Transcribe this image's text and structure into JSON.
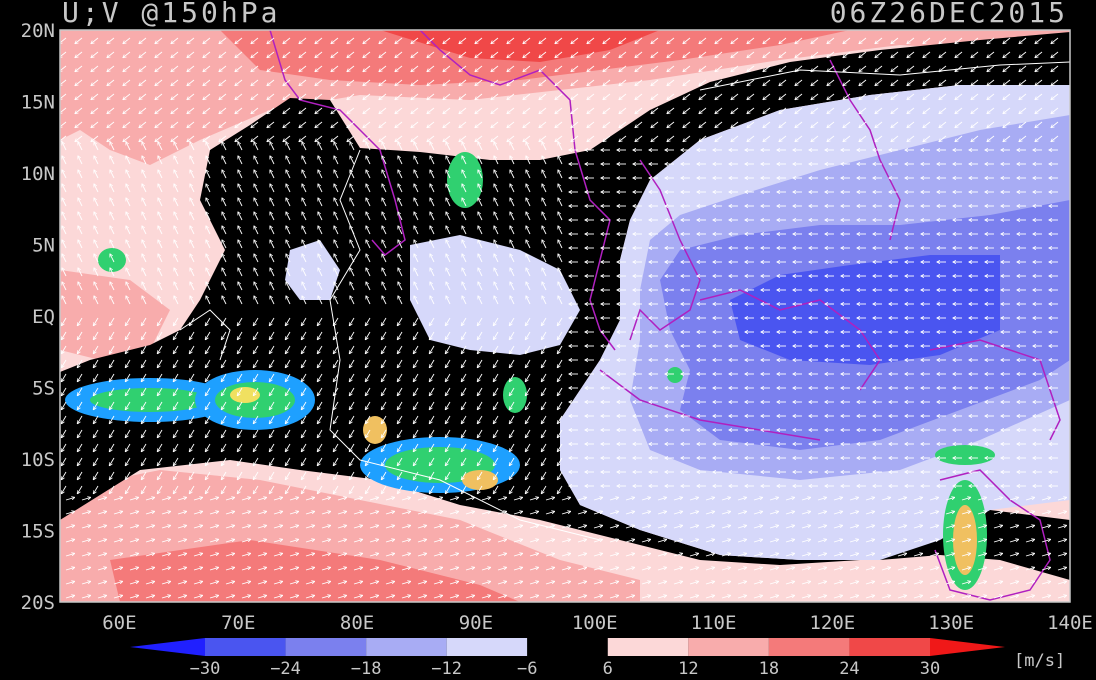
{
  "header": {
    "title_left": "U;V @150hPa",
    "title_right": "06Z26DEC2015"
  },
  "map": {
    "projection": "lat-lon",
    "lon_range": [
      55,
      140
    ],
    "lat_range": [
      -20,
      20
    ],
    "lat_ticks": [
      {
        "value": 20,
        "label": "20N"
      },
      {
        "value": 15,
        "label": "15N"
      },
      {
        "value": 10,
        "label": "10N"
      },
      {
        "value": 5,
        "label": "5N"
      },
      {
        "value": 0,
        "label": "EQ"
      },
      {
        "value": -5,
        "label": "5S"
      },
      {
        "value": -10,
        "label": "10S"
      },
      {
        "value": -15,
        "label": "15S"
      },
      {
        "value": -20,
        "label": "20S"
      }
    ],
    "lon_ticks": [
      {
        "value": 60,
        "label": "60E"
      },
      {
        "value": 70,
        "label": "70E"
      },
      {
        "value": 80,
        "label": "80E"
      },
      {
        "value": 90,
        "label": "90E"
      },
      {
        "value": 100,
        "label": "100E"
      },
      {
        "value": 110,
        "label": "110E"
      },
      {
        "value": 120,
        "label": "120E"
      },
      {
        "value": 130,
        "label": "130E"
      },
      {
        "value": 140,
        "label": "140E"
      }
    ],
    "colors": {
      "coast": "#b020c0",
      "vector": "#ffffff",
      "n_le_m30": "#2020ff",
      "n_m30_m24": "#4a55f0",
      "n_m24_m18": "#7b80ee",
      "n_m18_m12": "#a8acf4",
      "n_m12_m6": "#d6d8fa",
      "n_m6_6": "#000000",
      "p_6_12": "#fcd8d8",
      "p_12_18": "#f8acac",
      "p_18_24": "#f47a7a",
      "p_24_30": "#f04848",
      "p_ge_30": "#f01818"
    }
  },
  "colorbar": {
    "labels": [
      "−30",
      "−24",
      "−18",
      "−12",
      "−6",
      "6",
      "12",
      "18",
      "24",
      "30"
    ],
    "colors": [
      "#2020ff",
      "#4a55f0",
      "#7b80ee",
      "#a8acf4",
      "#d6d8fa",
      "#000000",
      "#fcd8d8",
      "#f8acac",
      "#f47a7a",
      "#f04848",
      "#f01818"
    ],
    "unit": "[m/s]"
  }
}
